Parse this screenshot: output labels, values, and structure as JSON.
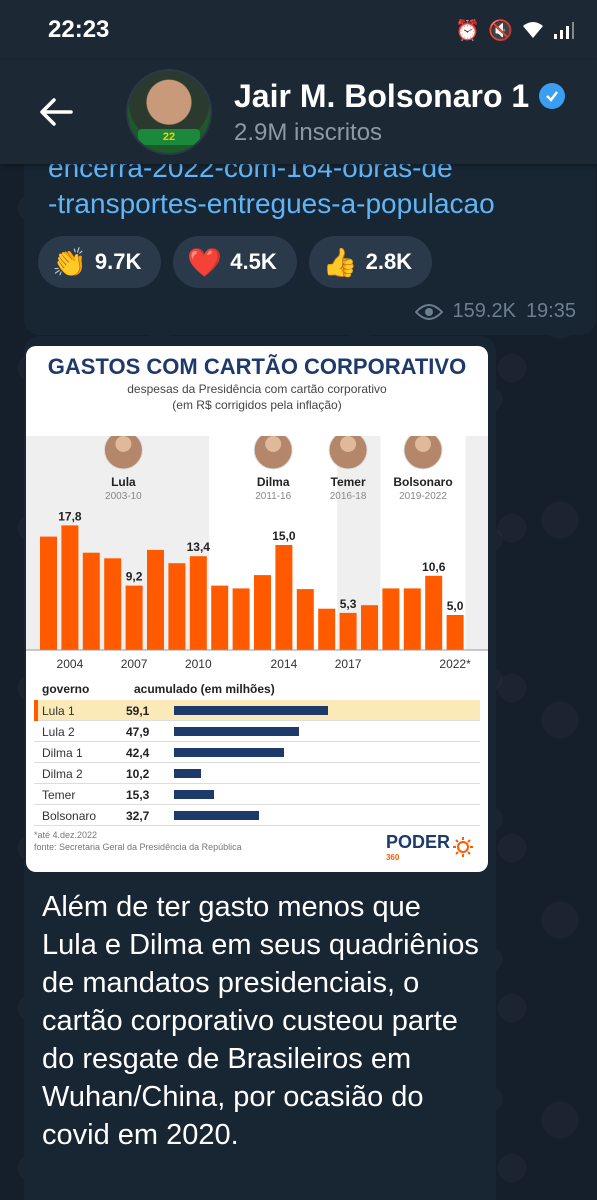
{
  "status_bar": {
    "time": "22:23"
  },
  "header": {
    "channel_name": "Jair M. Bolsonaro 1",
    "subscribers": "2.9M inscritos",
    "avatar_badge": "22"
  },
  "message1": {
    "link_lines": [
      "encerra-2022-com-164-obras-de",
      "-transportes-entregues-a-populacao"
    ],
    "reactions": [
      {
        "emoji": "👏",
        "count": "9.7K"
      },
      {
        "emoji": "❤️",
        "count": "4.5K"
      },
      {
        "emoji": "👍",
        "count": "2.8K"
      }
    ],
    "views": "159.2K",
    "time": "19:35"
  },
  "infographic": {
    "title": "GASTOS COM CARTÃO CORPORATIVO",
    "subtitle1": "despesas da Presidência com cartão corporativo",
    "subtitle2": "(em R$ corrigidos pela inflação)",
    "footnote1": "*até 4.dez.2022",
    "footnote2": "fonte: Secretaria Geral da Presidência da República",
    "logo": "PODER",
    "logo_sub": "360",
    "table": {
      "col1": "governo",
      "col2": "acumulado (em milhões)",
      "rows": [
        {
          "name": "Lula 1",
          "value": "59,1",
          "num": 59.1
        },
        {
          "name": "Lula 2",
          "value": "47,9",
          "num": 47.9
        },
        {
          "name": "Dilma 1",
          "value": "42,4",
          "num": 42.4
        },
        {
          "name": "Dilma 2",
          "value": "10,2",
          "num": 10.2
        },
        {
          "name": "Temer",
          "value": "15,3",
          "num": 15.3
        },
        {
          "name": "Bolsonaro",
          "value": "32,7",
          "num": 32.7
        }
      ]
    }
  },
  "chart_data": {
    "type": "bar",
    "title": "GASTOS COM CARTÃO CORPORATIVO",
    "subtitle": "despesas da Presidência com cartão corporativo (em R$ corrigidos pela inflação)",
    "x": [
      2003,
      2004,
      2005,
      2006,
      2007,
      2008,
      2009,
      2010,
      2011,
      2012,
      2013,
      2014,
      2015,
      2016,
      2017,
      2018,
      2019,
      2020,
      2021,
      2022
    ],
    "values": [
      16.2,
      17.8,
      13.9,
      13.1,
      9.2,
      14.3,
      12.4,
      13.4,
      9.2,
      8.8,
      10.7,
      15.0,
      8.7,
      5.9,
      5.3,
      6.4,
      8.8,
      8.8,
      10.6,
      5.0
    ],
    "value_labels": {
      "2004": "17,8",
      "2007": "9,2",
      "2010": "13,4",
      "2014": "15,0",
      "2017": "5,3",
      "2021": "10,6",
      "2022": "5,0"
    },
    "tick_labels": [
      "2004",
      "2007",
      "2010",
      "2014",
      "2017",
      "2022*"
    ],
    "tick_years": [
      2004,
      2007,
      2010,
      2014,
      2017,
      2022
    ],
    "ylim": [
      0,
      20
    ],
    "bar_color": "#ff5a00",
    "presidents": [
      {
        "name": "Lula",
        "period": "2003-10",
        "from": 2003,
        "to": 2010,
        "highlight": false
      },
      {
        "name": "Dilma",
        "period": "2011-16",
        "from": 2011,
        "to": 2016,
        "highlight": true
      },
      {
        "name": "Temer",
        "period": "2016-18",
        "from": 2016,
        "to": 2018,
        "highlight": false
      },
      {
        "name": "Bolsonaro",
        "period": "2019-2022",
        "from": 2019,
        "to": 2022,
        "highlight": true
      }
    ]
  },
  "caption": "Além de ter gasto menos que Lula e Dilma em seus quadriênios de mandatos presidenciais, o cartão corporativo custeou parte do resgate de Brasileiros em Wuhan/China, por ocasião do covid em 2020.",
  "colors": {
    "bg": "#0e1621",
    "bubble": "#182533",
    "header": "#1c2834",
    "link": "#5eb5f7",
    "accent_navy": "#1e3a6b",
    "accent_orange": "#ff5a00"
  }
}
